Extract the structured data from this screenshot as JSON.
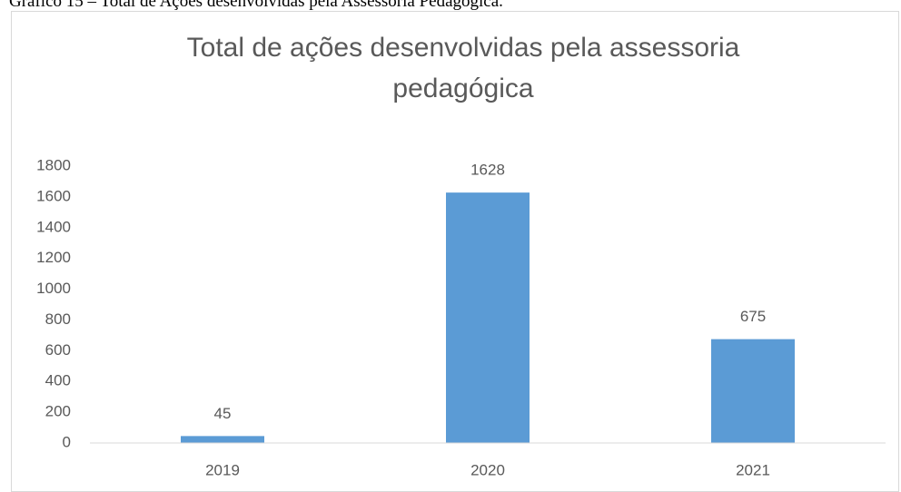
{
  "caption": "Gráfico 15 – Total de Ações desenvolvidas pela Assessoria Pedagógica.",
  "chart_data": {
    "type": "bar",
    "title": "Total de ações desenvolvidas pela assessoria pedagógica",
    "categories": [
      "2019",
      "2020",
      "2021"
    ],
    "values": [
      45,
      1628,
      675
    ],
    "color": "#5b9bd5",
    "ylim": [
      0,
      1800
    ],
    "yticks": [
      0,
      200,
      400,
      600,
      800,
      1000,
      1200,
      1400,
      1600,
      1800
    ],
    "grid": false
  }
}
